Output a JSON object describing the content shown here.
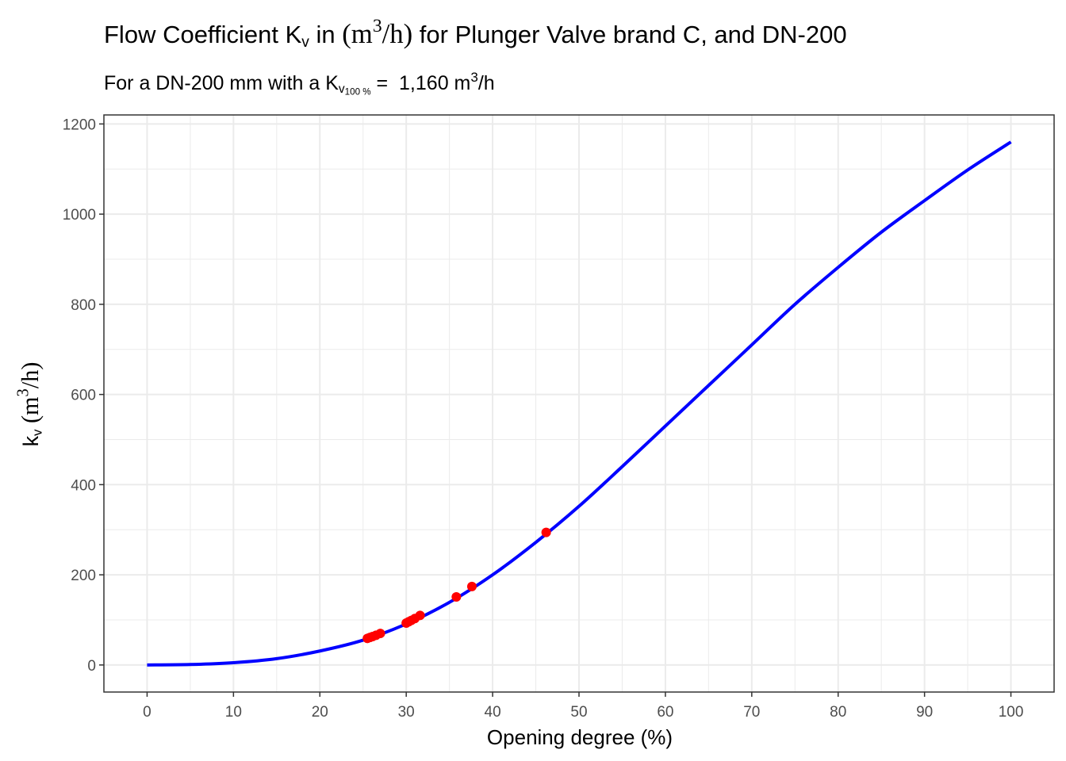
{
  "title": {
    "prefix": "Flow Coefficient K",
    "sub": "v",
    "mid": " in ",
    "unit_open": "(m",
    "unit_sup": "3",
    "unit_close": "/h)",
    "suffix": " for Plunger Valve brand C, and DN-200"
  },
  "subtitle": {
    "prefix": "For a DN-200 mm with a K",
    "sub": "v",
    "subsub": "100 %",
    "eq": " =  1,160 m",
    "sup": "3",
    "suffix": "/h"
  },
  "axis_labels": {
    "x": "Opening degree (%)",
    "y_prefix": "k",
    "y_sub": "v",
    "y_unit_open": "(m",
    "y_unit_sup": "3",
    "y_unit_close": "/h)"
  },
  "colors": {
    "curve": "#0000ff",
    "points": "#ff0000",
    "grid": "#ebebeb",
    "border": "#333333",
    "tick_text": "#4d4d4d"
  },
  "chart_data": {
    "type": "line",
    "xlim": [
      -5,
      105
    ],
    "ylim": [
      -60,
      1220
    ],
    "x_ticks": [
      0,
      10,
      20,
      30,
      40,
      50,
      60,
      70,
      80,
      90,
      100
    ],
    "y_ticks": [
      0,
      200,
      400,
      600,
      800,
      1000,
      1200
    ],
    "grid": true,
    "legend": "none",
    "series": [
      {
        "type": "line",
        "x": [
          0,
          5,
          10,
          15,
          20,
          25,
          30,
          35,
          40,
          45,
          50,
          55,
          60,
          65,
          70,
          75,
          80,
          85,
          90,
          95,
          100
        ],
        "y": [
          0,
          1,
          5,
          14,
          31,
          55,
          91,
          139,
          200,
          272,
          352,
          440,
          530,
          620,
          710,
          800,
          882,
          960,
          1030,
          1098,
          1160
        ]
      },
      {
        "type": "scatter",
        "x": [
          25.5,
          25.8,
          26.1,
          26.5,
          27.0,
          30.0,
          30.3,
          30.6,
          31.0,
          31.6,
          35.8,
          37.6,
          46.2
        ],
        "y": [
          59,
          61,
          63,
          66,
          70,
          93,
          96,
          99,
          103,
          110,
          151,
          174,
          294
        ]
      }
    ]
  }
}
